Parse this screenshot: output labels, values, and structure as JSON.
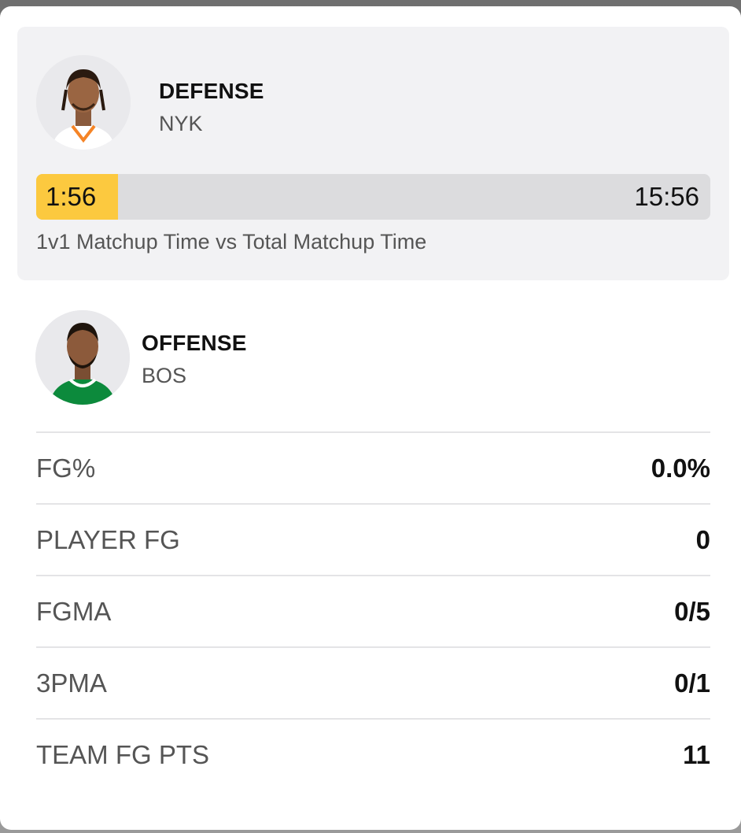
{
  "defense": {
    "role": "DEFENSE",
    "team": "NYK",
    "jersey_color": "#ffffff",
    "trim_color": "#f58426"
  },
  "matchup_bar": {
    "left_time": "1:56",
    "right_time": "15:56",
    "fill_fraction": 0.1215,
    "fill_color": "#fcc93f",
    "caption": "1v1 Matchup Time vs Total Matchup Time"
  },
  "offense": {
    "role": "OFFENSE",
    "team": "BOS",
    "jersey_color": "#0c8a3c",
    "trim_color": "#ffffff"
  },
  "stats": [
    {
      "label": "FG%",
      "value": "0.0%"
    },
    {
      "label": "PLAYER FG",
      "value": "0"
    },
    {
      "label": "FGMA",
      "value": "0/5"
    },
    {
      "label": "3PMA",
      "value": "0/1"
    },
    {
      "label": "TEAM FG PTS",
      "value": "11"
    }
  ]
}
